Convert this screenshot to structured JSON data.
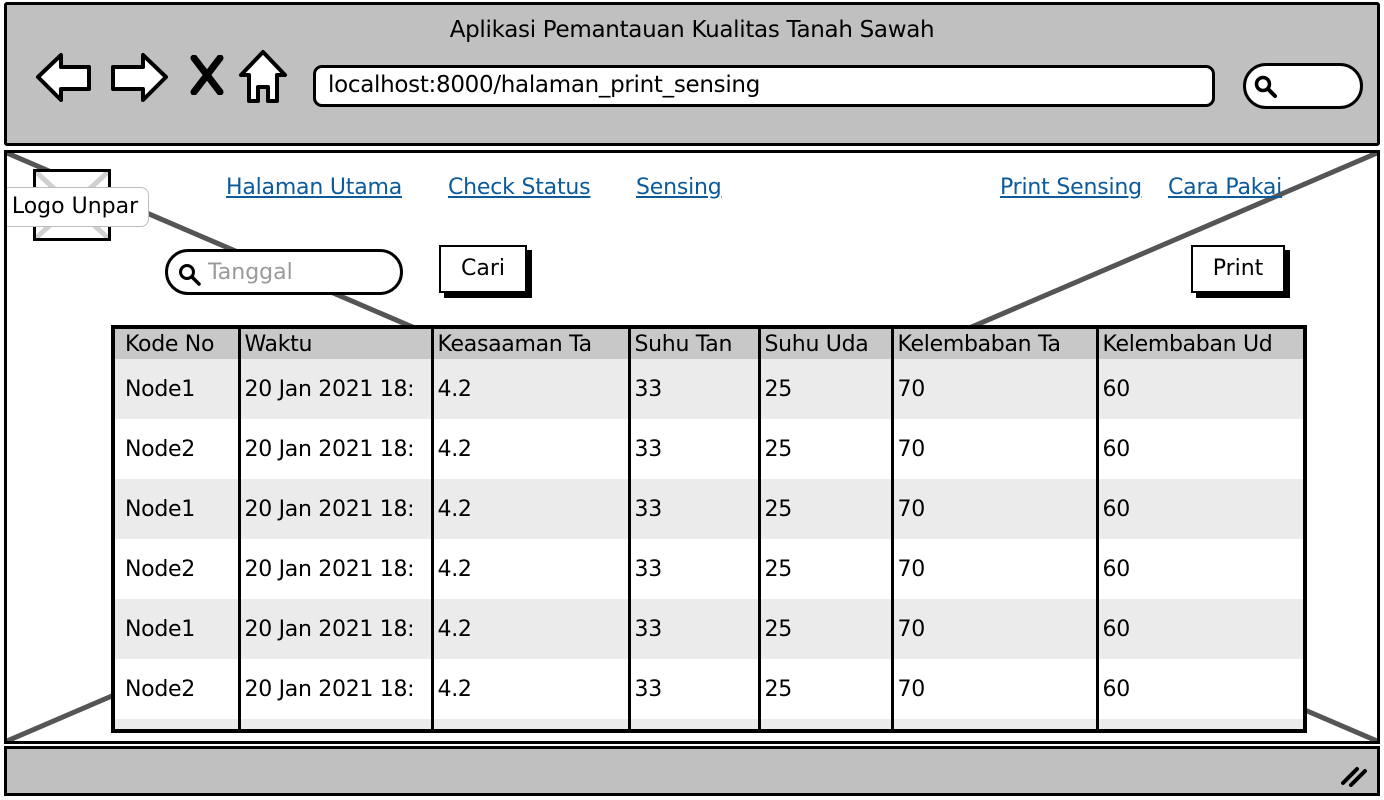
{
  "window": {
    "title": "Aplikasi Pemantauan Kualitas Tanah Sawah",
    "url": "localhost:8000/halaman_print_sensing"
  },
  "logo": {
    "label": "Logo Unpar"
  },
  "nav": {
    "links": [
      "Halaman Utama",
      "Check Status",
      "Sensing",
      "Print Sensing",
      "Cara Pakai"
    ]
  },
  "search": {
    "placeholder": "Tanggal",
    "value": ""
  },
  "buttons": {
    "search_label": "Cari",
    "print_label": "Print"
  },
  "table": {
    "headers": [
      "Kode No",
      "Waktu",
      "Keasaaman Ta",
      "Suhu Tan",
      "Suhu Uda",
      "Kelembaban Ta",
      "Kelembaban Ud"
    ],
    "rows": [
      [
        "Node1",
        "20 Jan 2021 18:",
        "4.2",
        "33",
        "25",
        "70",
        "60"
      ],
      [
        "Node2",
        "20 Jan 2021 18:",
        "4.2",
        "33",
        "25",
        "70",
        "60"
      ],
      [
        "Node1",
        "20 Jan 2021 18:",
        "4.2",
        "33",
        "25",
        "70",
        "60"
      ],
      [
        "Node2",
        "20 Jan 2021 18:",
        "4.2",
        "33",
        "25",
        "70",
        "60"
      ],
      [
        "Node1",
        "20 Jan 2021 18:",
        "4.2",
        "33",
        "25",
        "70",
        "60"
      ],
      [
        "Node2",
        "20 Jan 2021 18:",
        "4.2",
        "33",
        "25",
        "70",
        "60"
      ],
      [
        "",
        "",
        "",
        "",
        "",
        "",
        ""
      ]
    ]
  },
  "colors": {
    "chrome": "#c0c0c0",
    "link": "#0a5a9c",
    "header_row": "#c8c8c8",
    "stripe_row": "#ebebeb"
  },
  "icons": {
    "nav": [
      "back-arrow-icon",
      "forward-arrow-icon",
      "close-icon",
      "home-icon"
    ],
    "search": "search-icon",
    "grip": "resize-grip-icon"
  }
}
